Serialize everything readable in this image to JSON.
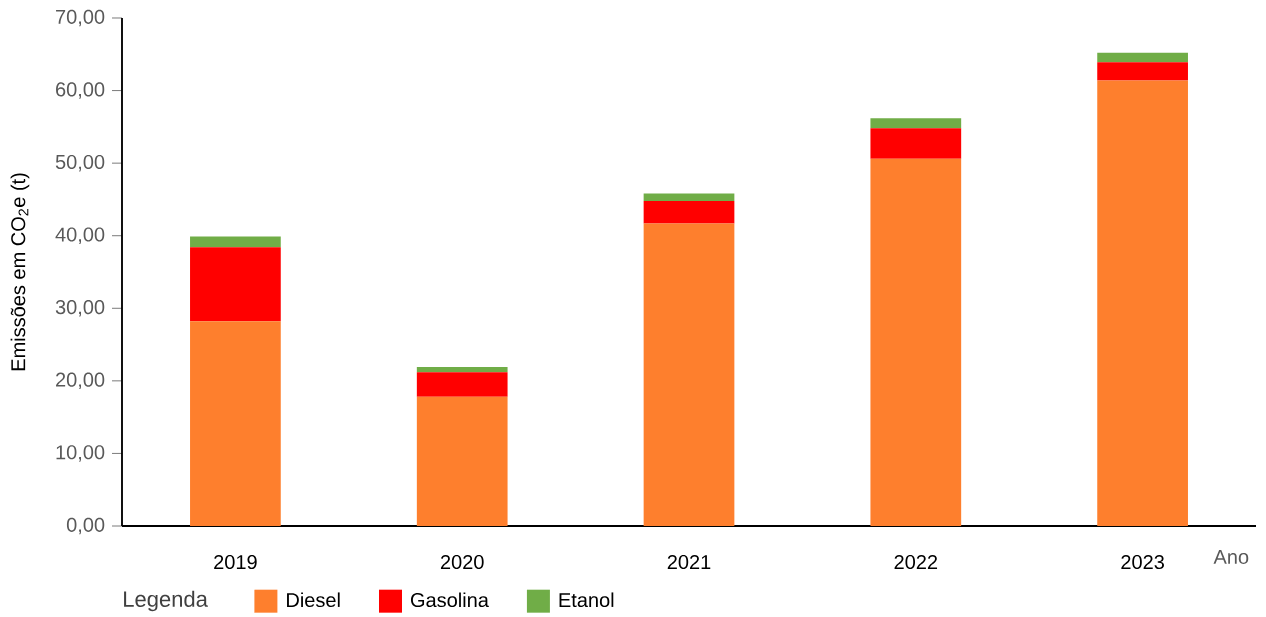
{
  "chart_data": {
    "type": "bar",
    "stacked": true,
    "ylabel": "Emissões em CO$_{2}$e (t)",
    "xlabel": "Ano",
    "legend_title": "Legenda",
    "categories": [
      "2019",
      "2020",
      "2021",
      "2022",
      "2023"
    ],
    "series": [
      {
        "name": "Diesel",
        "color": "#fe7f2d",
        "values": [
          28.2,
          17.8,
          41.7,
          50.6,
          61.4
        ]
      },
      {
        "name": "Gasolina",
        "color": "#ff0000",
        "values": [
          10.2,
          3.4,
          3.1,
          4.2,
          2.5
        ]
      },
      {
        "name": "Etanol",
        "color": "#70ad47",
        "values": [
          1.5,
          0.7,
          1.0,
          1.4,
          1.3
        ]
      }
    ],
    "ylim": [
      0,
      70
    ],
    "yticks": [
      {
        "value": 0,
        "label": "0,00"
      },
      {
        "value": 10,
        "label": "10,00"
      },
      {
        "value": 20,
        "label": "20,00"
      },
      {
        "value": 30,
        "label": "30,00"
      },
      {
        "value": 40,
        "label": "40,00"
      },
      {
        "value": 50,
        "label": "50,00"
      },
      {
        "value": 60,
        "label": "60,00"
      },
      {
        "value": 70,
        "label": "70,00"
      }
    ],
    "grid": false,
    "legend": "bottom"
  }
}
